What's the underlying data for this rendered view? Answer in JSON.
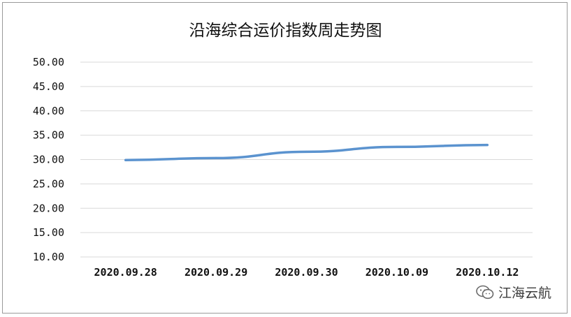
{
  "chart_data": {
    "type": "line",
    "title": "沿海综合运价指数周走势图",
    "categories": [
      "2020.09.28",
      "2020.09.29",
      "2020.09.30",
      "2020.10.09",
      "2020.10.12"
    ],
    "series": [
      {
        "values": [
          29.9,
          30.3,
          31.6,
          32.6,
          33.0
        ],
        "color": "#5b93cf"
      }
    ],
    "ylim": [
      10,
      50
    ],
    "yticks": [
      "10.00",
      "15.00",
      "20.00",
      "25.00",
      "30.00",
      "35.00",
      "40.00",
      "45.00",
      "50.00"
    ],
    "xlabel": "",
    "ylabel": "",
    "grid": true,
    "legend": "none"
  },
  "watermark": {
    "text": "江海云航",
    "icon": "wechat-icon"
  }
}
